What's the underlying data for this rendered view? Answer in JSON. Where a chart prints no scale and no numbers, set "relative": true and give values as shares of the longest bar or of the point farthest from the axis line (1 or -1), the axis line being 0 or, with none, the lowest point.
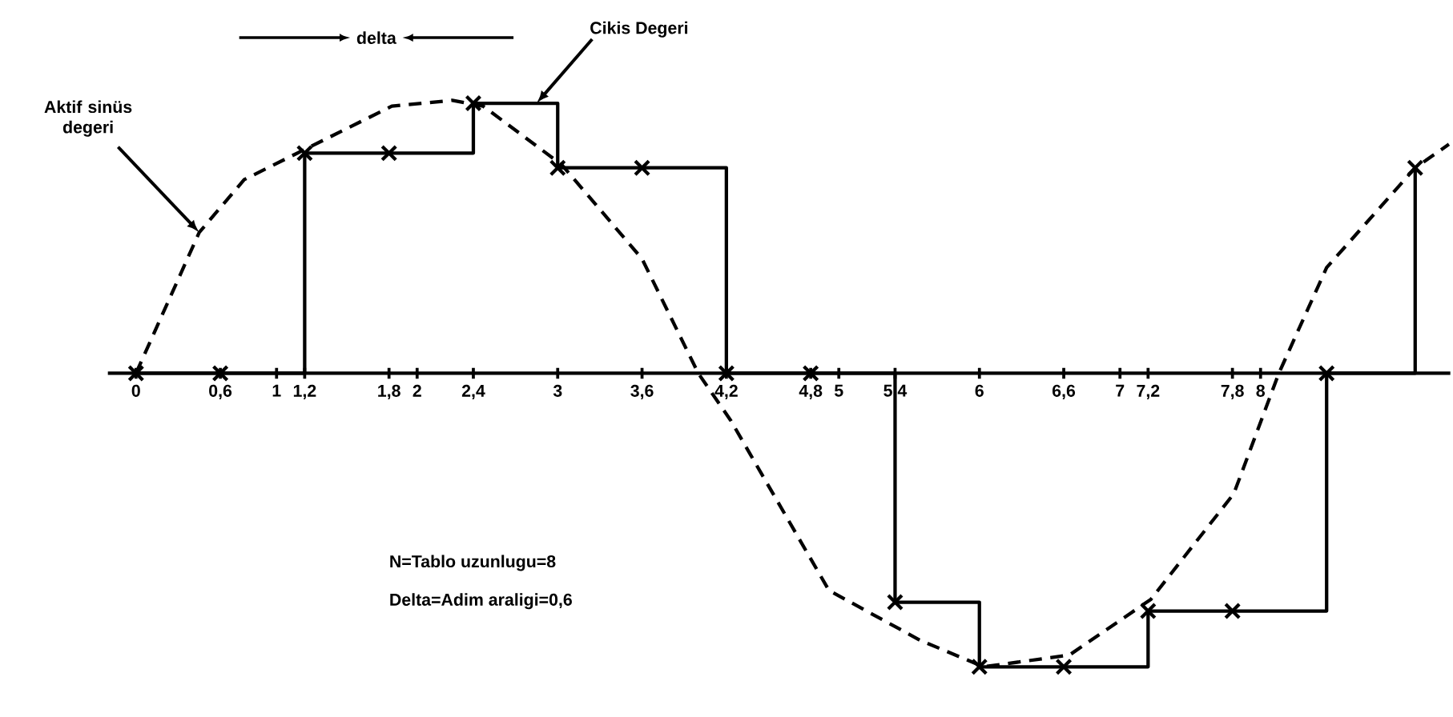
{
  "chart_data": {
    "type": "line",
    "relative": true,
    "xlim": [
      -0.2,
      9.35
    ],
    "xticks": [
      0,
      {
        "value": 0.6,
        "label": "0,6"
      },
      1,
      {
        "value": 1.2,
        "label": "1,2"
      },
      {
        "value": 1.8,
        "label": "1,8"
      },
      2,
      {
        "value": 2.4,
        "label": "2,4"
      },
      3,
      {
        "value": 3.6,
        "label": "3,6"
      },
      {
        "value": 4.2,
        "label": "4,2"
      },
      {
        "value": 4.8,
        "label": "4,8"
      },
      5,
      {
        "value": 5.4,
        "label": "5,4"
      },
      6,
      {
        "value": 6.6,
        "label": "6,6"
      },
      7,
      {
        "value": 7.2,
        "label": "7,2"
      },
      {
        "value": 7.8,
        "label": "7,8"
      },
      8
    ],
    "series": [
      {
        "color": "#000000",
        "line_style": "dashed",
        "marker": "none",
        "x": [
          0,
          0.45,
          0.77,
          1.19,
          1.82,
          2.25,
          2.47,
          3.03,
          3.6,
          4.0,
          4.23,
          4.93,
          5.58,
          6.03,
          6.64,
          7.22,
          7.81,
          8.13,
          8.47,
          9.1,
          9.34
        ],
        "values": [
          0,
          0.48,
          0.66,
          0.76,
          0.91,
          0.93,
          0.91,
          0.71,
          0.39,
          0,
          -0.16,
          -0.74,
          -0.91,
          -1.0,
          -0.96,
          -0.77,
          -0.41,
          0,
          0.36,
          0.7,
          0.78
        ]
      },
      {
        "type": "step",
        "color": "#000000",
        "line_style": "solid",
        "marker": "cross",
        "x": [
          0,
          0.6,
          1.2,
          1.8,
          2.4,
          3,
          3.6,
          4.2,
          4.8,
          5.4,
          6,
          6.6,
          7.2,
          7.8,
          8.47,
          9.1
        ],
        "values": [
          0,
          0,
          0.75,
          0.75,
          0.92,
          0.7,
          0.7,
          0,
          0,
          -0.78,
          -1.0,
          -1.0,
          -0.81,
          -0.81,
          0,
          0.7
        ]
      }
    ],
    "annotations": [
      "delta",
      {
        "text": "Cikis Degeri",
        "x": 2.85,
        "y": 0.92
      },
      {
        "text": "Aktif sinüs degeri",
        "x": 0.45,
        "y": 0.48
      },
      "N=Tablo uzunlugu=8",
      "Delta=Adim araligi=0,6"
    ],
    "grid": false
  }
}
